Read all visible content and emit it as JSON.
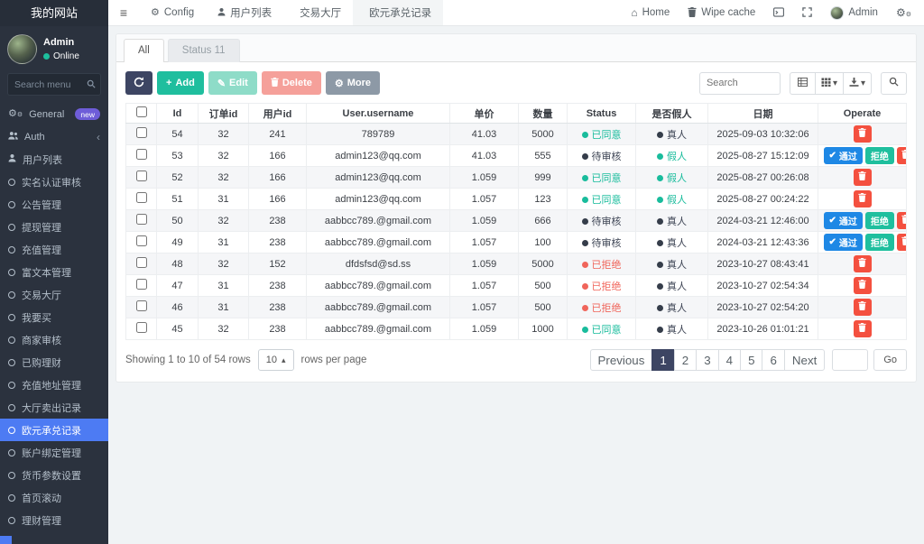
{
  "colors": {
    "sidebar_active": "#4d7bf3",
    "success_green": "#19bc9c",
    "danger_red": "#f0655b",
    "dark_navy": "#3d4563",
    "approve_blue": "#1e88e5",
    "delete_red": "#f4503f",
    "badge_purple": "#6e5dd8"
  },
  "sidebar": {
    "title": "我的网站",
    "user": {
      "name": "Admin",
      "status": "Online"
    },
    "search_placeholder": "Search menu",
    "items": [
      {
        "key": "general",
        "label": "General",
        "icon": "gears",
        "badge": "new"
      },
      {
        "key": "auth",
        "label": "Auth",
        "icon": "users",
        "chevron": true
      },
      {
        "key": "user-list",
        "label": "用户列表",
        "icon": "user"
      },
      {
        "key": "realname-audit",
        "label": "实名认证审核",
        "icon": "circle"
      },
      {
        "key": "notice-manage",
        "label": "公告管理",
        "icon": "circle"
      },
      {
        "key": "withdraw-manage",
        "label": "提现管理",
        "icon": "circle"
      },
      {
        "key": "recharge-manage",
        "label": "充值管理",
        "icon": "circle"
      },
      {
        "key": "richtext-manage",
        "label": "富文本管理",
        "icon": "circle"
      },
      {
        "key": "trade-hall",
        "label": "交易大厅",
        "icon": "circle"
      },
      {
        "key": "want-buy",
        "label": "我要买",
        "icon": "circle"
      },
      {
        "key": "merchant-audit",
        "label": "商家审核",
        "icon": "circle"
      },
      {
        "key": "purchased-finance",
        "label": "已购理财",
        "icon": "circle"
      },
      {
        "key": "recharge-address",
        "label": "充值地址管理",
        "icon": "circle"
      },
      {
        "key": "hall-sell-records",
        "label": "大厅卖出记录",
        "icon": "circle"
      },
      {
        "key": "euro-exchange-records",
        "label": "欧元承兑记录",
        "icon": "circle",
        "active": true
      },
      {
        "key": "account-binding",
        "label": "账户绑定管理",
        "icon": "circle"
      },
      {
        "key": "currency-params",
        "label": "货币参数设置",
        "icon": "circle"
      },
      {
        "key": "home-scroll",
        "label": "首页滚动",
        "icon": "circle"
      },
      {
        "key": "finance-manage",
        "label": "理财管理",
        "icon": "circle"
      }
    ]
  },
  "topnav": {
    "tabs": [
      {
        "key": "config",
        "label": "Config",
        "icon": "gear"
      },
      {
        "key": "user-list",
        "label": "用户列表",
        "icon": "user"
      },
      {
        "key": "trade-hall",
        "label": "交易大厅",
        "icon": "circle"
      },
      {
        "key": "euro-exchange-records",
        "label": "欧元承兑记录",
        "icon": "circle",
        "active": true
      }
    ],
    "home": "Home",
    "wipe_cache": "Wipe cache",
    "admin": "Admin"
  },
  "panel": {
    "tabs": [
      {
        "label": "All",
        "active": true
      },
      {
        "label": "Status 11",
        "muted": true
      }
    ],
    "toolbar": {
      "add": "Add",
      "edit": "Edit",
      "delete": "Delete",
      "more": "More",
      "search_placeholder": "Search"
    },
    "table": {
      "columns": [
        "Id",
        "订单id",
        "用户id",
        "User.username",
        "单价",
        "数量",
        "Status",
        "是否假人",
        "日期",
        "Operate"
      ],
      "action_labels": {
        "approve": "通过",
        "reject": "拒绝"
      },
      "rows": [
        {
          "id": "54",
          "order_id": "32",
          "user_id": "241",
          "username": "789789",
          "price": "41.03",
          "qty": "5000",
          "status": "已同意",
          "status_color": "green",
          "fake": "真人",
          "fake_color": "dark",
          "date": "2025-09-03 10:32:06",
          "actions": [
            "delete"
          ]
        },
        {
          "id": "53",
          "order_id": "32",
          "user_id": "166",
          "username": "admin123@qq.com",
          "price": "41.03",
          "qty": "555",
          "status": "待审核",
          "status_color": "dark",
          "fake": "假人",
          "fake_color": "green",
          "date": "2025-08-27 15:12:09",
          "actions": [
            "approve",
            "reject",
            "delete"
          ]
        },
        {
          "id": "52",
          "order_id": "32",
          "user_id": "166",
          "username": "admin123@qq.com",
          "price": "1.059",
          "qty": "999",
          "status": "已同意",
          "status_color": "green",
          "fake": "假人",
          "fake_color": "green",
          "date": "2025-08-27 00:26:08",
          "actions": [
            "delete"
          ]
        },
        {
          "id": "51",
          "order_id": "31",
          "user_id": "166",
          "username": "admin123@qq.com",
          "price": "1.057",
          "qty": "123",
          "status": "已同意",
          "status_color": "green",
          "fake": "假人",
          "fake_color": "green",
          "date": "2025-08-27 00:24:22",
          "actions": [
            "delete"
          ]
        },
        {
          "id": "50",
          "order_id": "32",
          "user_id": "238",
          "username": "aabbcc789.@gmail.com",
          "price": "1.059",
          "qty": "666",
          "status": "待审核",
          "status_color": "dark",
          "fake": "真人",
          "fake_color": "dark",
          "date": "2024-03-21 12:46:00",
          "actions": [
            "approve",
            "reject",
            "delete"
          ]
        },
        {
          "id": "49",
          "order_id": "31",
          "user_id": "238",
          "username": "aabbcc789.@gmail.com",
          "price": "1.057",
          "qty": "100",
          "status": "待审核",
          "status_color": "dark",
          "fake": "真人",
          "fake_color": "dark",
          "date": "2024-03-21 12:43:36",
          "actions": [
            "approve",
            "reject",
            "delete"
          ]
        },
        {
          "id": "48",
          "order_id": "32",
          "user_id": "152",
          "username": "dfdsfsd@sd.ss",
          "price": "1.059",
          "qty": "5000",
          "status": "已拒绝",
          "status_color": "red",
          "fake": "真人",
          "fake_color": "dark",
          "date": "2023-10-27 08:43:41",
          "actions": [
            "delete"
          ]
        },
        {
          "id": "47",
          "order_id": "31",
          "user_id": "238",
          "username": "aabbcc789.@gmail.com",
          "price": "1.057",
          "qty": "500",
          "status": "已拒绝",
          "status_color": "red",
          "fake": "真人",
          "fake_color": "dark",
          "date": "2023-10-27 02:54:34",
          "actions": [
            "delete"
          ]
        },
        {
          "id": "46",
          "order_id": "31",
          "user_id": "238",
          "username": "aabbcc789.@gmail.com",
          "price": "1.057",
          "qty": "500",
          "status": "已拒绝",
          "status_color": "red",
          "fake": "真人",
          "fake_color": "dark",
          "date": "2023-10-27 02:54:20",
          "actions": [
            "delete"
          ]
        },
        {
          "id": "45",
          "order_id": "32",
          "user_id": "238",
          "username": "aabbcc789.@gmail.com",
          "price": "1.059",
          "qty": "1000",
          "status": "已同意",
          "status_color": "green",
          "fake": "真人",
          "fake_color": "dark",
          "date": "2023-10-26 01:01:21",
          "actions": [
            "delete"
          ]
        }
      ]
    },
    "footer": {
      "showing": "Showing 1 to 10 of 54 rows",
      "page_size": "10",
      "rows_per_page": "rows per page",
      "previous": "Previous",
      "pages": [
        "1",
        "2",
        "3",
        "4",
        "5",
        "6"
      ],
      "active_page": "1",
      "next": "Next",
      "go": "Go"
    }
  }
}
